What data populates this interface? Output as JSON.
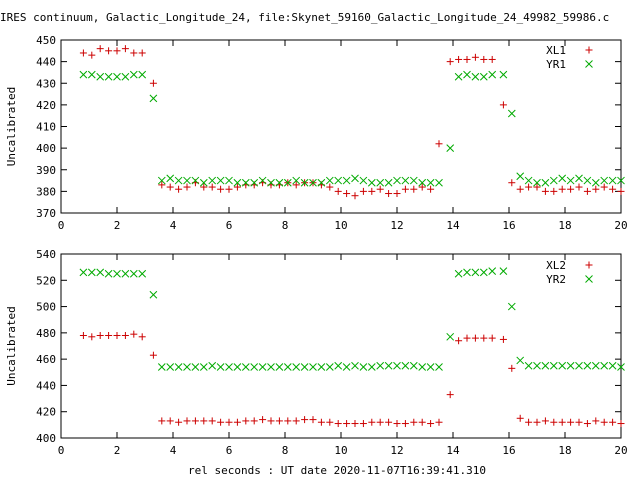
{
  "title": "IRES continuum, Galactic_Longitude_24, file:Skynet_59160_Galactic_Longitude_24_49982_59986.c",
  "xlabel": "rel seconds : UT date 2020-11-07T16:39:41.310",
  "chart_data": [
    {
      "type": "scatter",
      "ylabel": "Uncalibrated",
      "xlim": [
        0,
        20
      ],
      "ylim": [
        370,
        450
      ],
      "xticks": [
        0,
        2,
        4,
        6,
        8,
        10,
        12,
        14,
        16,
        18,
        20
      ],
      "yticks": [
        370,
        380,
        390,
        400,
        410,
        420,
        430,
        440,
        450
      ],
      "x": [
        0.8,
        1.1,
        1.4,
        1.7,
        2.0,
        2.3,
        2.6,
        2.9,
        3.3,
        3.6,
        3.9,
        4.2,
        4.5,
        4.8,
        5.1,
        5.4,
        5.7,
        6.0,
        6.3,
        6.6,
        6.9,
        7.2,
        7.5,
        7.8,
        8.1,
        8.4,
        8.7,
        9.0,
        9.3,
        9.6,
        9.9,
        10.2,
        10.5,
        10.8,
        11.1,
        11.4,
        11.7,
        12.0,
        12.3,
        12.6,
        12.9,
        13.2,
        13.5,
        13.9,
        14.2,
        14.5,
        14.8,
        15.1,
        15.4,
        15.8,
        16.1,
        16.4,
        16.7,
        17.0,
        17.3,
        17.6,
        17.9,
        18.2,
        18.5,
        18.8,
        19.1,
        19.4,
        19.7,
        20.0
      ],
      "series": [
        {
          "name": "XL1",
          "symbol": "plus",
          "color": "#cc0000",
          "values": [
            444,
            443,
            446,
            445,
            445,
            446,
            444,
            444,
            430,
            383,
            382,
            381,
            382,
            384,
            382,
            382,
            381,
            381,
            382,
            383,
            383,
            384,
            383,
            383,
            384,
            383,
            384,
            384,
            383,
            382,
            380,
            379,
            378,
            380,
            380,
            381,
            379,
            379,
            381,
            381,
            382,
            381,
            402,
            440,
            441,
            441,
            442,
            441,
            441,
            420,
            384,
            381,
            382,
            382,
            380,
            380,
            381,
            381,
            382,
            380,
            381,
            382,
            381,
            380
          ]
        },
        {
          "name": "YR1",
          "symbol": "cross",
          "color": "#00aa00",
          "values": [
            434,
            434,
            433,
            433,
            433,
            433,
            434,
            434,
            423,
            385,
            386,
            385,
            385,
            385,
            384,
            385,
            385,
            385,
            384,
            384,
            384,
            385,
            384,
            384,
            384,
            385,
            384,
            384,
            384,
            385,
            385,
            385,
            386,
            385,
            384,
            384,
            384,
            385,
            385,
            385,
            384,
            384,
            384,
            400,
            433,
            434,
            433,
            433,
            434,
            434,
            416,
            387,
            385,
            384,
            384,
            385,
            386,
            385,
            386,
            385,
            384,
            385,
            385,
            385
          ]
        }
      ]
    },
    {
      "type": "scatter",
      "ylabel": "Uncalibrated",
      "xlim": [
        0,
        20
      ],
      "ylim": [
        400,
        540
      ],
      "xticks": [
        0,
        2,
        4,
        6,
        8,
        10,
        12,
        14,
        16,
        18,
        20
      ],
      "yticks": [
        400,
        420,
        440,
        460,
        480,
        500,
        520,
        540
      ],
      "x": [
        0.8,
        1.1,
        1.4,
        1.7,
        2.0,
        2.3,
        2.6,
        2.9,
        3.3,
        3.6,
        3.9,
        4.2,
        4.5,
        4.8,
        5.1,
        5.4,
        5.7,
        6.0,
        6.3,
        6.6,
        6.9,
        7.2,
        7.5,
        7.8,
        8.1,
        8.4,
        8.7,
        9.0,
        9.3,
        9.6,
        9.9,
        10.2,
        10.5,
        10.8,
        11.1,
        11.4,
        11.7,
        12.0,
        12.3,
        12.6,
        12.9,
        13.2,
        13.5,
        13.9,
        14.2,
        14.5,
        14.8,
        15.1,
        15.4,
        15.8,
        16.1,
        16.4,
        16.7,
        17.0,
        17.3,
        17.6,
        17.9,
        18.2,
        18.5,
        18.8,
        19.1,
        19.4,
        19.7,
        20.0
      ],
      "series": [
        {
          "name": "XL2",
          "symbol": "plus",
          "color": "#cc0000",
          "values": [
            478,
            477,
            478,
            478,
            478,
            478,
            479,
            477,
            463,
            413,
            413,
            412,
            413,
            413,
            413,
            413,
            412,
            412,
            412,
            413,
            413,
            414,
            413,
            413,
            413,
            413,
            414,
            414,
            412,
            412,
            411,
            411,
            411,
            411,
            412,
            412,
            412,
            411,
            411,
            412,
            412,
            411,
            412,
            433,
            474,
            476,
            476,
            476,
            476,
            475,
            453,
            415,
            412,
            412,
            413,
            412,
            412,
            412,
            412,
            411,
            413,
            412,
            412,
            411
          ]
        },
        {
          "name": "YR2",
          "symbol": "cross",
          "color": "#00aa00",
          "values": [
            526,
            526,
            526,
            525,
            525,
            525,
            525,
            525,
            509,
            454,
            454,
            454,
            454,
            454,
            454,
            455,
            454,
            454,
            454,
            454,
            454,
            454,
            454,
            454,
            454,
            454,
            454,
            454,
            454,
            454,
            455,
            454,
            455,
            454,
            454,
            455,
            455,
            455,
            455,
            455,
            454,
            454,
            454,
            477,
            525,
            526,
            526,
            526,
            527,
            527,
            500,
            459,
            455,
            455,
            455,
            455,
            455,
            455,
            455,
            455,
            455,
            455,
            455,
            454
          ]
        }
      ]
    }
  ]
}
